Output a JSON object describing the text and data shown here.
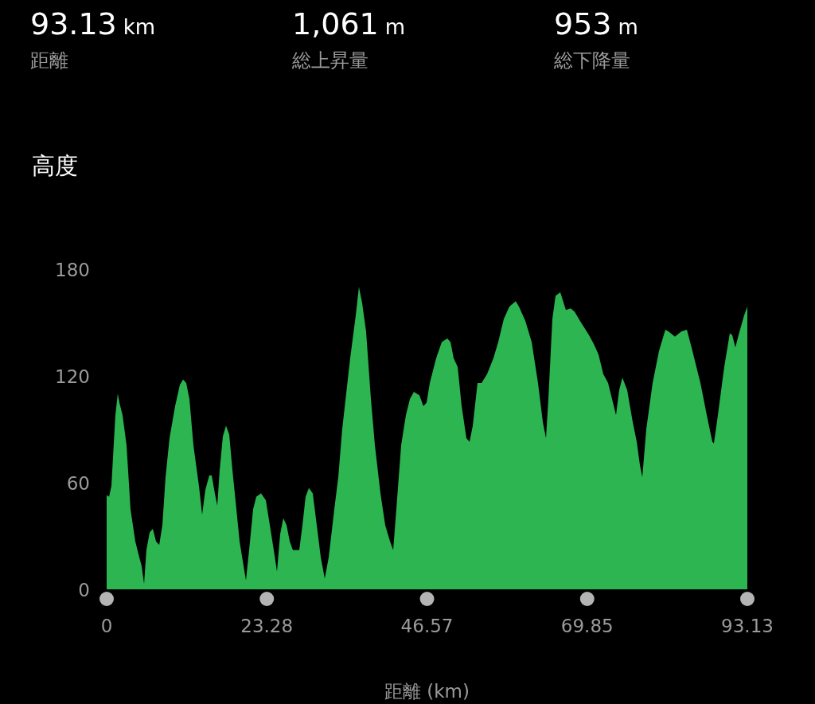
{
  "chart_data": {
    "type": "area",
    "title": "高度",
    "xlabel": "距離 (km)",
    "annotations": [
      "93.13 km",
      "距離",
      "1,061 m",
      "総上昇量",
      "953 m",
      "総下降量"
    ],
    "xlim": [
      0,
      93.13
    ],
    "xticks": [
      0,
      23.28,
      46.57,
      69.85,
      93.13
    ],
    "ylim": [
      0,
      180
    ],
    "yticks": [
      0,
      60,
      120,
      180
    ],
    "series": [
      {
        "color": "#2db552",
        "x": [
          0,
          0.35,
          0.69,
          1.27,
          1.62,
          1.85,
          2.31,
          2.89,
          3.47,
          4.16,
          4.74,
          5.09,
          5.44,
          5.78,
          6.25,
          6.71,
          7.17,
          7.64,
          8.1,
          8.56,
          9.14,
          9.95,
          10.64,
          11.11,
          11.57,
          12.03,
          12.61,
          13.42,
          13.88,
          14.35,
          14.92,
          15.27,
          15.73,
          16.08,
          16.43,
          16.89,
          17.35,
          17.82,
          18.28,
          18.86,
          19.32,
          19.78,
          20.25,
          20.71,
          21.29,
          21.75,
          22.44,
          23.14,
          23.72,
          24.29,
          24.76,
          25.22,
          25.68,
          26.15,
          26.61,
          27.07,
          28.0,
          28.46,
          28.92,
          29.39,
          29.96,
          30.54,
          31.12,
          31.7,
          32.28,
          33.09,
          33.67,
          34.24,
          35.4,
          36.21,
          36.67,
          37.14,
          37.71,
          38.41,
          38.99,
          39.8,
          40.49,
          41.19,
          41.65,
          42.11,
          42.81,
          43.5,
          44.08,
          44.66,
          45.47,
          46.04,
          46.51,
          46.97,
          47.9,
          48.71,
          49.52,
          49.98,
          50.44,
          51.02,
          51.6,
          52.29,
          52.75,
          53.22,
          53.91,
          54.49,
          55.3,
          56.22,
          56.92,
          57.73,
          58.54,
          59.46,
          59.93,
          60.85,
          61.78,
          62.7,
          63.4,
          63.86,
          64.21,
          64.79,
          65.25,
          65.94,
          66.75,
          67.45,
          68.03,
          68.95,
          70.11,
          70.8,
          71.5,
          72.19,
          72.89,
          73.46,
          74.04,
          74.5,
          74.97,
          75.66,
          76.47,
          77.05,
          77.51,
          77.86,
          78.44,
          79.36,
          80.29,
          81.21,
          81.68,
          82.6,
          83.53,
          84.34,
          85.15,
          86.31,
          87.23,
          88.04,
          88.27,
          88.85,
          89.77,
          90.58,
          90.93,
          91.39,
          91.85,
          92.66,
          93.13
        ],
        "values": [
          53,
          52,
          58,
          98,
          110,
          105,
          98,
          81,
          45,
          27,
          18,
          13,
          3,
          22,
          32,
          34,
          27,
          25,
          36,
          63,
          85,
          103,
          115,
          118,
          116,
          107,
          81,
          58,
          42,
          56,
          64,
          64,
          54,
          47,
          67,
          86,
          92,
          87,
          67,
          45,
          27,
          16,
          5,
          22,
          45,
          52,
          54,
          50,
          36,
          22,
          10,
          31,
          40,
          36,
          27,
          22,
          22,
          36,
          52,
          57,
          54,
          36,
          18,
          6,
          18,
          45,
          63,
          90,
          130,
          154,
          170,
          161,
          145,
          107,
          81,
          54,
          36,
          27,
          22,
          45,
          81,
          98,
          107,
          111,
          109,
          103,
          105,
          116,
          130,
          139,
          141,
          139,
          130,
          125,
          103,
          85,
          83,
          92,
          116,
          116,
          121,
          130,
          139,
          152,
          159,
          162,
          159,
          151,
          139,
          116,
          94,
          85,
          107,
          152,
          165,
          167,
          157,
          158,
          156,
          150,
          143,
          138,
          132,
          121,
          116,
          107,
          98,
          112,
          119,
          112,
          94,
          83,
          70,
          63,
          90,
          116,
          134,
          146,
          145,
          142,
          145,
          146,
          134,
          116,
          98,
          83,
          82,
          98,
          125,
          144,
          143,
          136,
          143,
          154,
          159
        ]
      }
    ]
  }
}
